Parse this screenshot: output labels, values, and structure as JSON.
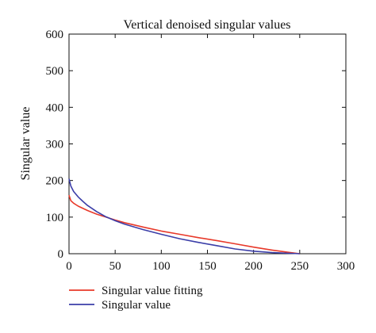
{
  "chart_data": {
    "type": "line",
    "title": "Vertical denoised singular values",
    "xlabel": "",
    "ylabel": "Singular value",
    "xlim": [
      0,
      300
    ],
    "ylim": [
      0,
      600
    ],
    "xticks": [
      0,
      50,
      100,
      150,
      200,
      250,
      300
    ],
    "yticks": [
      0,
      100,
      200,
      300,
      400,
      500,
      600
    ],
    "grid": false,
    "legend": "bottom-left, below plot",
    "series": [
      {
        "name": "Singular value fitting",
        "color": "#e8392a",
        "x": [
          0,
          2,
          5,
          10,
          20,
          30,
          40,
          50,
          60,
          80,
          100,
          120,
          140,
          160,
          180,
          200,
          220,
          240,
          250
        ],
        "y": [
          160,
          145,
          138,
          130,
          118,
          108,
          100,
          92,
          85,
          73,
          62,
          53,
          44,
          36,
          27,
          18,
          10,
          3,
          0
        ]
      },
      {
        "name": "Singular value",
        "color": "#3b3ea8",
        "x": [
          0,
          2,
          5,
          10,
          15,
          20,
          30,
          40,
          50,
          60,
          80,
          100,
          120,
          140,
          160,
          180,
          200,
          220,
          240,
          250
        ],
        "y": [
          205,
          185,
          170,
          155,
          143,
          132,
          115,
          101,
          90,
          81,
          66,
          53,
          41,
          31,
          22,
          13,
          7,
          3,
          1,
          0
        ]
      }
    ]
  }
}
